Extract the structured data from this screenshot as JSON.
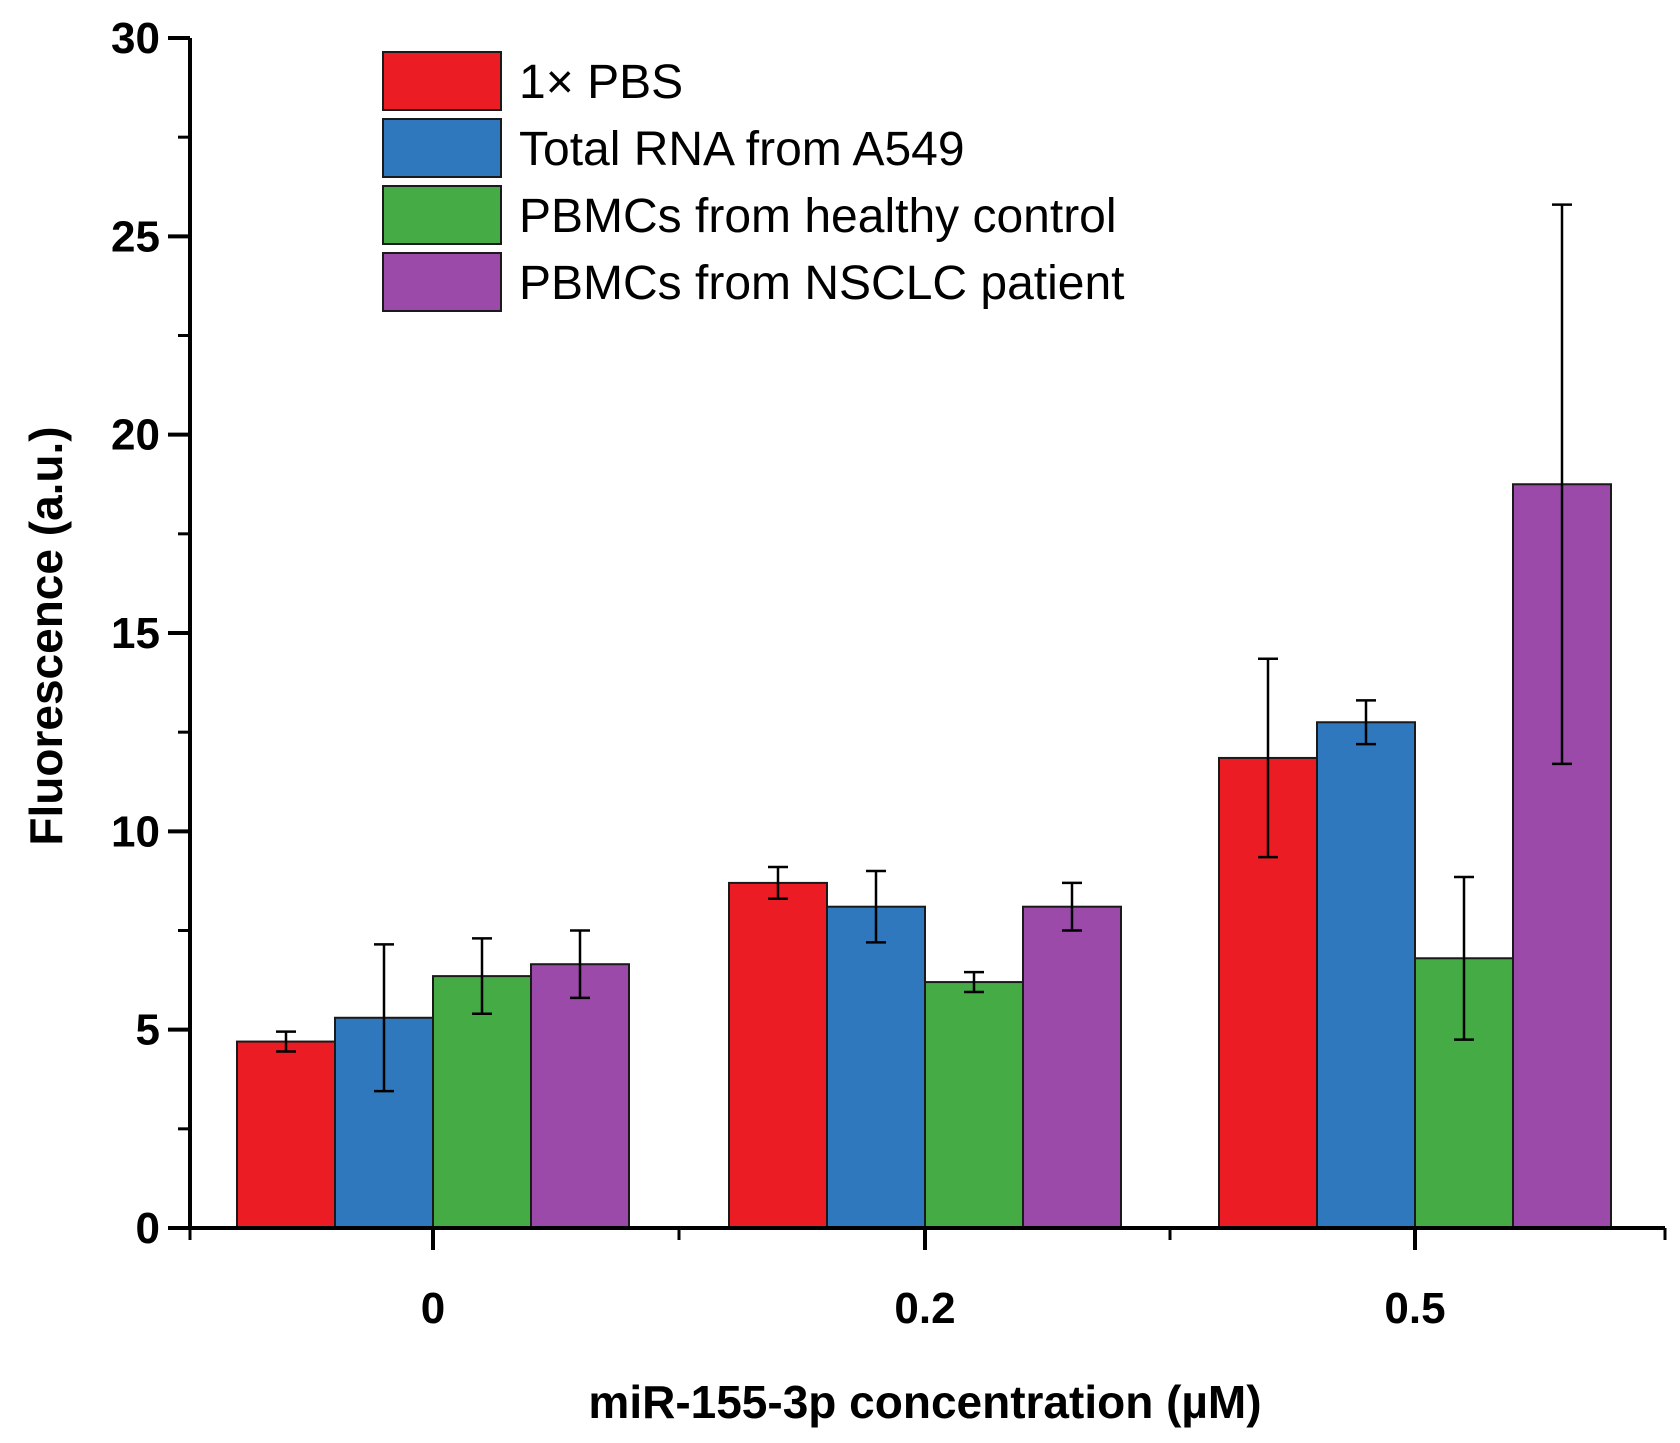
{
  "chart_data": {
    "type": "bar",
    "title": "",
    "xlabel": "miR-155-3p concentration (µM)",
    "ylabel": "Fluorescence (a.u.)",
    "categories": [
      "0",
      "0.2",
      "0.5"
    ],
    "ylim": [
      0,
      30
    ],
    "yticks": [
      0,
      5,
      10,
      15,
      20,
      25,
      30
    ],
    "ytick_labels": [
      "0",
      "5",
      "10",
      "15",
      "20",
      "25",
      "30"
    ],
    "grid": false,
    "legend_position": "top-left",
    "series": [
      {
        "name": "1× PBS",
        "color": "#ec1c24",
        "values": [
          4.7,
          8.7,
          11.85
        ],
        "errors": [
          0.25,
          0.4,
          2.5
        ]
      },
      {
        "name": "Total RNA from A549",
        "color": "#2f78bd",
        "values": [
          5.3,
          8.1,
          12.75
        ],
        "errors": [
          1.85,
          0.9,
          0.55
        ]
      },
      {
        "name": "PBMCs from healthy control",
        "color": "#44ab45",
        "values": [
          6.35,
          6.2,
          6.8
        ],
        "errors": [
          0.95,
          0.25,
          2.05
        ]
      },
      {
        "name": "PBMCs from NSCLC patient",
        "color": "#9b4aaa",
        "values": [
          6.65,
          8.1,
          18.75
        ],
        "errors": [
          0.85,
          0.6,
          7.05
        ]
      }
    ]
  }
}
